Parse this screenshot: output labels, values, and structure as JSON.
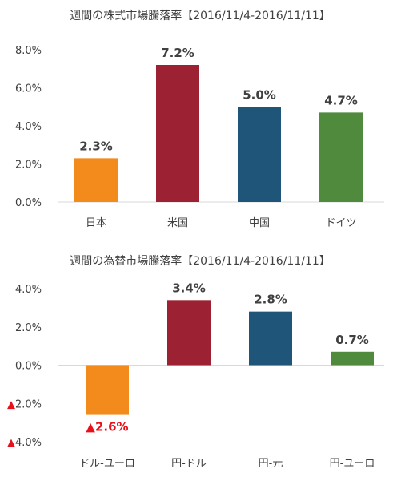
{
  "chart_data": [
    {
      "type": "bar",
      "title": "週間の株式市場騰落率【2016/11/4-2016/11/11】",
      "categories": [
        "日本",
        "米国",
        "中国",
        "ドイツ"
      ],
      "values": [
        2.3,
        7.2,
        5.0,
        4.7
      ],
      "value_labels": [
        "2.3%",
        "7.2%",
        "5.0%",
        "4.7%"
      ],
      "colors": [
        "#f28a1c",
        "#9c2233",
        "#1e5578",
        "#4f8a3d"
      ],
      "ylim": [
        0,
        8
      ],
      "yticks": [
        "8.0%",
        "6.0%",
        "4.0%",
        "2.0%",
        "0.0%"
      ],
      "ytick_values": [
        8,
        6,
        4,
        2,
        0
      ],
      "grid": false,
      "xlabel": "",
      "ylabel": ""
    },
    {
      "type": "bar",
      "title": "週間の為替市場騰落率【2016/11/4-2016/11/11】",
      "categories": [
        "ドル-ユーロ",
        "円-ドル",
        "円-元",
        "円-ユーロ"
      ],
      "values": [
        -2.6,
        3.4,
        2.8,
        0.7
      ],
      "value_labels": [
        "▲2.6%",
        "3.4%",
        "2.8%",
        "0.7%"
      ],
      "colors": [
        "#f28a1c",
        "#9c2233",
        "#1e5578",
        "#4f8a3d"
      ],
      "ylim": [
        -4,
        4
      ],
      "yticks": [
        "4.0%",
        "2.0%",
        "0.0%",
        "▲2.0%",
        "▲4.0%"
      ],
      "ytick_values": [
        4,
        2,
        0,
        -2,
        -4
      ],
      "negative_marker_color": "#e8101a",
      "grid": false,
      "xlabel": "",
      "ylabel": ""
    }
  ]
}
